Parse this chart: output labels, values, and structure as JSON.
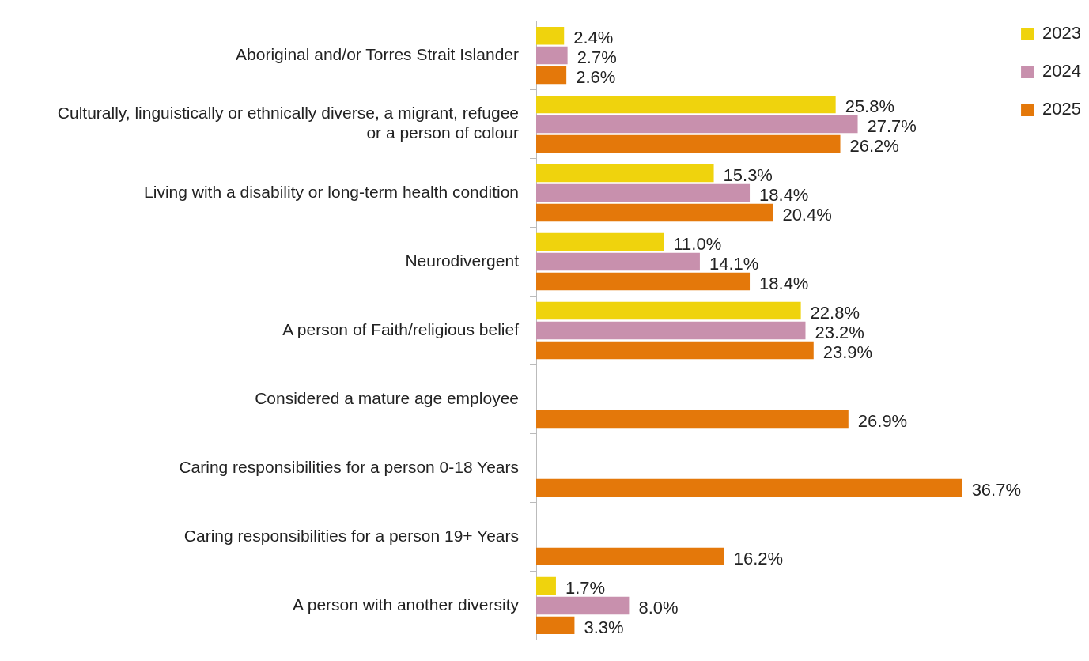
{
  "chart_data": {
    "type": "bar",
    "orientation": "horizontal",
    "legend": "top right",
    "grid": false,
    "categories": [
      "Aboriginal and/or Torres Strait Islander",
      "Culturally, linguistically or ethnically diverse, a migrant, refugee or a person of colour",
      "Living with a disability or long-term health condition",
      "Neurodivergent",
      "A person of Faith/religious belief",
      "Considered a mature age employee",
      "Caring responsibilities for a person 0-18 Years",
      "Caring responsibilities for a person 19+ Years",
      "A person with another diversity"
    ],
    "series": [
      {
        "name": "2023",
        "color": "#efd30d",
        "values": [
          2.4,
          25.8,
          15.3,
          11.0,
          22.8,
          null,
          null,
          null,
          1.7
        ],
        "value_labels": [
          "2.4%",
          "25.8%",
          "15.3%",
          "11.0%",
          "22.8%",
          null,
          null,
          null,
          "1.7%"
        ]
      },
      {
        "name": "2024",
        "color": "#c890ad",
        "values": [
          2.7,
          27.7,
          18.4,
          14.1,
          23.2,
          null,
          null,
          null,
          8.0
        ],
        "value_labels": [
          "2.7%",
          "27.7%",
          "18.4%",
          "14.1%",
          "23.2%",
          null,
          null,
          null,
          "8.0%"
        ]
      },
      {
        "name": "2025",
        "color": "#e4780a",
        "values": [
          2.6,
          26.2,
          20.4,
          18.4,
          23.9,
          26.9,
          36.7,
          16.2,
          3.3
        ],
        "value_labels": [
          "2.6%",
          "26.2%",
          "20.4%",
          "18.4%",
          "23.9%",
          "26.9%",
          "36.7%",
          "16.2%",
          "3.3%"
        ]
      }
    ]
  }
}
